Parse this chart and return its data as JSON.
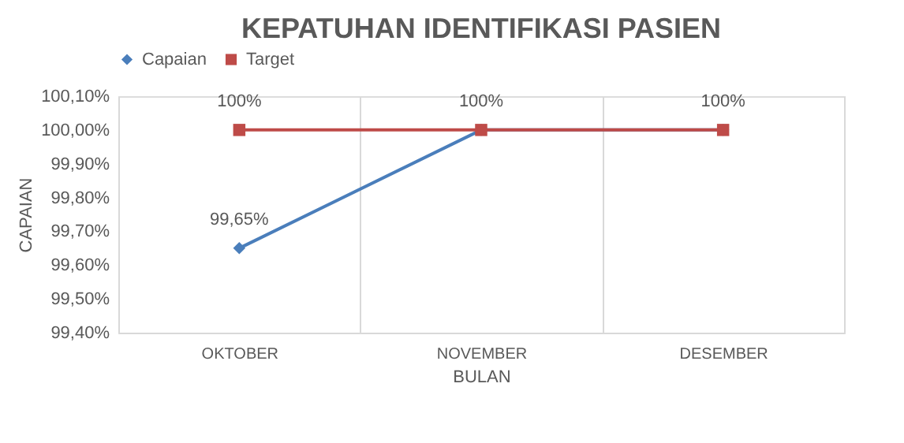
{
  "chart_data": {
    "type": "line",
    "title": "KEPATUHAN IDENTIFIKASI PASIEN",
    "xlabel": "BULAN",
    "ylabel": "CAPAIAN",
    "categories": [
      "OKTOBER",
      "NOVEMBER",
      "DESEMBER"
    ],
    "series": [
      {
        "name": "Capaian",
        "color": "#4a7ebb",
        "marker": "diamond",
        "values": [
          99.65,
          100,
          100
        ],
        "value_labels": [
          "99,65%",
          null,
          null
        ]
      },
      {
        "name": "Target",
        "color": "#be4b48",
        "marker": "square",
        "values": [
          100,
          100,
          100
        ],
        "value_labels": [
          "100%",
          "100%",
          "100%"
        ]
      }
    ],
    "ylim": [
      99.4,
      100.1
    ],
    "yticks": [
      {
        "value": 99.4,
        "label": "99,40%"
      },
      {
        "value": 99.5,
        "label": "99,50%"
      },
      {
        "value": 99.6,
        "label": "99,60%"
      },
      {
        "value": 99.7,
        "label": "99,70%"
      },
      {
        "value": 99.8,
        "label": "99,80%"
      },
      {
        "value": 99.9,
        "label": "99,90%"
      },
      {
        "value": 100.0,
        "label": "100,00%"
      },
      {
        "value": 100.1,
        "label": "100,10%"
      }
    ],
    "grid": "x",
    "legend": "top",
    "line_style": "solid"
  }
}
